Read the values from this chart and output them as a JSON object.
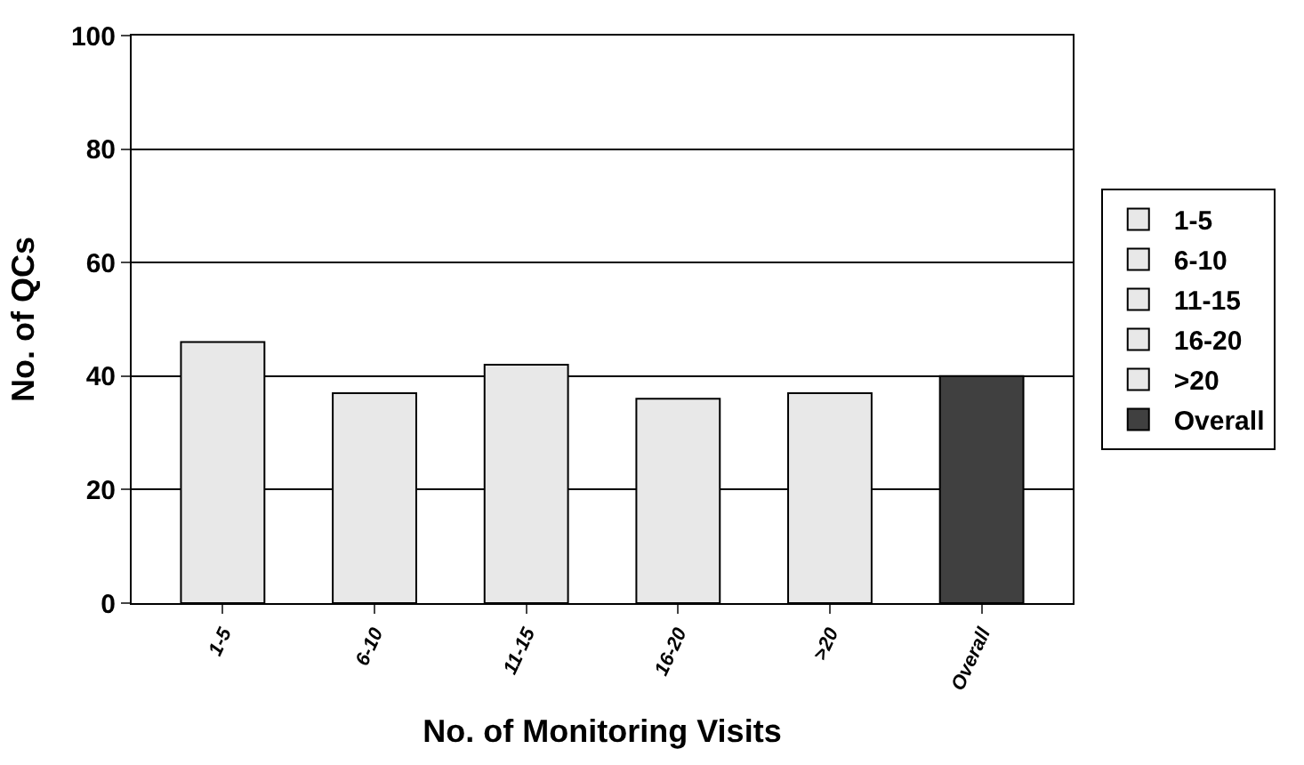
{
  "chart_data": {
    "type": "bar",
    "xlabel": "No. of Monitoring Visits",
    "ylabel": "No. of QCs",
    "categories": [
      "1-5",
      "6-10",
      "11-15",
      "16-20",
      ">20",
      "Overall"
    ],
    "series": [
      {
        "name": "1-5",
        "color": "#e8e8e8",
        "values": [
          46,
          null,
          null,
          null,
          null,
          null
        ]
      },
      {
        "name": "6-10",
        "color": "#e8e8e8",
        "values": [
          null,
          37,
          null,
          null,
          null,
          null
        ]
      },
      {
        "name": "11-15",
        "color": "#e8e8e8",
        "values": [
          null,
          null,
          42,
          null,
          null,
          null
        ]
      },
      {
        "name": "16-20",
        "color": "#e8e8e8",
        "values": [
          null,
          null,
          null,
          36,
          null,
          null
        ]
      },
      {
        "name": ">20",
        "color": "#e8e8e8",
        "values": [
          null,
          null,
          null,
          null,
          37,
          null
        ]
      },
      {
        "name": "Overall",
        "color": "#404040",
        "values": [
          null,
          null,
          null,
          null,
          null,
          40
        ]
      }
    ],
    "ylim": [
      0,
      100
    ],
    "yticks": [
      0,
      20,
      40,
      60,
      80,
      100
    ],
    "grid": "y",
    "legend": "right"
  }
}
